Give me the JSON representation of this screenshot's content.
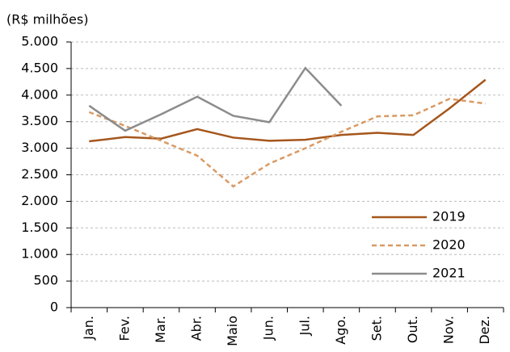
{
  "chart_data": {
    "type": "line",
    "subtitle": "(R$ milhões)",
    "categories": [
      "Jan.",
      "Fev.",
      "Mar.",
      "Abr.",
      "Maio",
      "Jun.",
      "Jul.",
      "Ago.",
      "Set.",
      "Out.",
      "Nov.",
      "Dez."
    ],
    "series": [
      {
        "name": "2019",
        "color": "#a5561c",
        "dash": false,
        "values": [
          3130,
          3210,
          3180,
          3360,
          3200,
          3140,
          3160,
          3250,
          3290,
          3250,
          3750,
          4290
        ]
      },
      {
        "name": "2020",
        "color": "#d99a63",
        "dash": true,
        "values": [
          3680,
          3420,
          3140,
          2860,
          2280,
          2710,
          3000,
          3310,
          3600,
          3620,
          3930,
          3840
        ]
      },
      {
        "name": "2021",
        "color": "#8c8c8c",
        "dash": false,
        "values": [
          3800,
          3330,
          3640,
          3970,
          3610,
          3490,
          4510,
          3800,
          null,
          null,
          null,
          null
        ]
      }
    ],
    "ylim": [
      0,
      5000
    ],
    "yticks": [
      0,
      500,
      {
        "value": 1000,
        "label": "1.000"
      },
      {
        "value": 1500,
        "label": "1.500"
      },
      {
        "value": 2000,
        "label": "2.000"
      },
      {
        "value": 2500,
        "label": "2.500"
      },
      {
        "value": 3000,
        "label": "3.000"
      },
      {
        "value": 3500,
        "label": "3.500"
      },
      {
        "value": 4000,
        "label": "4.000"
      },
      {
        "value": 4500,
        "label": "4.500"
      },
      {
        "value": 5000,
        "label": "5.000"
      }
    ],
    "grid": true,
    "legend": "lower-right"
  }
}
